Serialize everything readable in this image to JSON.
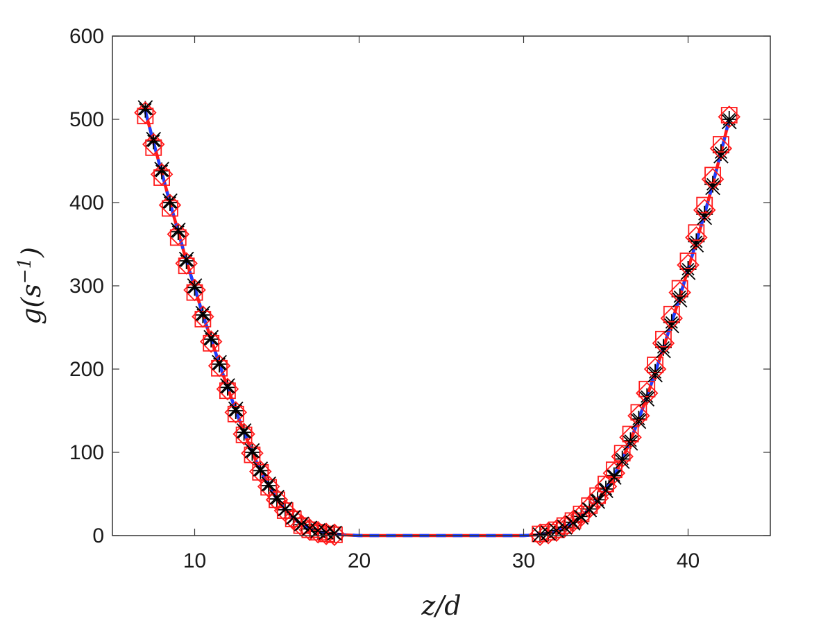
{
  "chart_data": {
    "type": "line",
    "xlabel": "z/d",
    "ylabel_parts": {
      "base": "g(s",
      "sup": "−1",
      "close": ")"
    },
    "xlim": [
      5,
      45
    ],
    "ylim": [
      0,
      600
    ],
    "xticks": [
      10,
      20,
      30,
      40
    ],
    "yticks": [
      0,
      100,
      200,
      300,
      400,
      500,
      600
    ],
    "grid": false,
    "legend": "none",
    "curves": {
      "blue_dashed_color": "#1f3fff",
      "red_line_color": "#ff1a1a",
      "points": [
        [
          7.0,
          510
        ],
        [
          7.5,
          472
        ],
        [
          8.0,
          436
        ],
        [
          8.5,
          400
        ],
        [
          9.0,
          365
        ],
        [
          9.5,
          330
        ],
        [
          10.0,
          298
        ],
        [
          10.5,
          265
        ],
        [
          11.0,
          236
        ],
        [
          11.5,
          206
        ],
        [
          12.0,
          178
        ],
        [
          12.5,
          150
        ],
        [
          13.0,
          124
        ],
        [
          13.5,
          100
        ],
        [
          14.0,
          78
        ],
        [
          14.5,
          60
        ],
        [
          15.0,
          44
        ],
        [
          15.5,
          31
        ],
        [
          16.0,
          21
        ],
        [
          16.5,
          13
        ],
        [
          17.0,
          8
        ],
        [
          17.5,
          5
        ],
        [
          18.0,
          3
        ],
        [
          18.5,
          2
        ],
        [
          19.0,
          1
        ],
        [
          20.0,
          0
        ],
        [
          25.0,
          0
        ],
        [
          30.0,
          0
        ],
        [
          31.0,
          1
        ],
        [
          31.5,
          3
        ],
        [
          32.0,
          6
        ],
        [
          32.5,
          10
        ],
        [
          33.0,
          16
        ],
        [
          33.5,
          23
        ],
        [
          34.0,
          32
        ],
        [
          34.5,
          43
        ],
        [
          35.0,
          56
        ],
        [
          35.5,
          72
        ],
        [
          36.0,
          92
        ],
        [
          36.5,
          114
        ],
        [
          37.0,
          140
        ],
        [
          37.5,
          167
        ],
        [
          38.0,
          196
        ],
        [
          38.5,
          226
        ],
        [
          39.0,
          256
        ],
        [
          39.5,
          287
        ],
        [
          40.0,
          320
        ],
        [
          40.5,
          353
        ],
        [
          41.0,
          386
        ],
        [
          41.5,
          422
        ],
        [
          42.0,
          460
        ],
        [
          42.5,
          500
        ]
      ]
    },
    "marker_series": [
      {
        "marker": "star",
        "color": "#000000",
        "x": [
          7.0,
          7.5,
          8.0,
          8.5,
          9.0,
          9.5,
          10.0,
          10.5,
          11.0,
          11.5,
          12.0,
          12.5,
          13.0,
          13.5,
          14.0,
          14.5,
          15.0,
          15.5,
          16.0,
          16.5,
          17.0,
          17.5,
          18.0,
          18.5,
          31.0,
          31.5,
          32.0,
          32.5,
          33.0,
          33.5,
          34.0,
          34.5,
          35.0,
          35.5,
          36.0,
          36.5,
          37.0,
          37.5,
          38.0,
          38.5,
          39.0,
          39.5,
          40.0,
          40.5,
          41.0,
          41.5,
          42.0,
          42.5
        ],
        "y": [
          512,
          474,
          438,
          400,
          365,
          330,
          298,
          265,
          236,
          206,
          178,
          150,
          124,
          100,
          78,
          60,
          44,
          31,
          21,
          13,
          8,
          5,
          3,
          2,
          1,
          3,
          6,
          10,
          16,
          23,
          32,
          43,
          56,
          72,
          92,
          114,
          140,
          167,
          196,
          226,
          256,
          287,
          320,
          353,
          386,
          422,
          460,
          500
        ]
      },
      {
        "marker": "square",
        "color": "#ff1a1a",
        "x": [
          7.0,
          7.5,
          8.0,
          8.5,
          9.0,
          9.5,
          10.0,
          10.5,
          11.0,
          11.5,
          12.0,
          12.5,
          13.0,
          13.5,
          14.0,
          14.5,
          15.0,
          15.5,
          16.0,
          16.5,
          17.0,
          17.5,
          18.0,
          18.5,
          31.0,
          31.5,
          32.0,
          32.5,
          33.0,
          33.5,
          34.0,
          34.5,
          35.0,
          35.5,
          36.0,
          36.5,
          37.0,
          37.5,
          38.0,
          38.5,
          39.0,
          39.5,
          40.0,
          40.5,
          41.0,
          41.5,
          42.0,
          42.5
        ],
        "y": [
          504,
          466,
          430,
          393,
          358,
          324,
          292,
          260,
          231,
          201,
          174,
          146,
          121,
          97,
          76,
          58,
          43,
          30,
          20,
          12,
          7,
          4,
          2,
          1,
          2,
          4,
          7,
          12,
          18,
          26,
          36,
          48,
          62,
          79,
          99,
          122,
          148,
          176,
          205,
          236,
          266,
          297,
          330,
          364,
          397,
          433,
          470,
          505
        ]
      },
      {
        "marker": "diamond",
        "color": "#ff1a1a",
        "x": [
          7.0,
          7.5,
          8.0,
          8.5,
          9.0,
          9.5,
          10.0,
          10.5,
          11.0,
          11.5,
          12.0,
          12.5,
          13.0,
          13.5,
          14.0,
          14.5,
          15.0,
          15.5,
          16.0,
          16.5,
          17.0,
          17.5,
          18.0,
          18.5,
          31.0,
          31.5,
          32.0,
          32.5,
          33.0,
          33.5,
          34.0,
          34.5,
          35.0,
          35.5,
          36.0,
          36.5,
          37.0,
          37.5,
          38.0,
          38.5,
          39.0,
          39.5,
          40.0,
          40.5,
          41.0,
          41.5,
          42.0,
          42.5
        ],
        "y": [
          508,
          470,
          434,
          397,
          362,
          327,
          295,
          263,
          233,
          204,
          176,
          148,
          122,
          99,
          77,
          59,
          43,
          30,
          20,
          12,
          7,
          4,
          2,
          1,
          1,
          3,
          6,
          11,
          17,
          24,
          34,
          45,
          59,
          75,
          95,
          118,
          144,
          171,
          200,
          231,
          261,
          292,
          325,
          358,
          391,
          428,
          465,
          503
        ]
      },
      {
        "marker": "x",
        "color": "#000000",
        "x": [
          7.0,
          7.5,
          8.0,
          8.5,
          9.0,
          9.5,
          10.0,
          10.5,
          11.0,
          11.5,
          12.0,
          12.5,
          13.0,
          13.5,
          14.0,
          14.5,
          15.0,
          15.5,
          16.0,
          16.5,
          17.0,
          17.5,
          18.0,
          18.5,
          31.0,
          31.5,
          32.0,
          32.5,
          33.0,
          33.5,
          34.0,
          34.5,
          35.0,
          35.5,
          36.0,
          36.5,
          37.0,
          37.5,
          38.0,
          38.5,
          39.0,
          39.5,
          40.0,
          40.5,
          41.0,
          41.5,
          42.0,
          42.5
        ],
        "y": [
          514,
          476,
          440,
          402,
          367,
          332,
          300,
          267,
          238,
          208,
          180,
          152,
          126,
          102,
          80,
          62,
          46,
          32,
          22,
          14,
          9,
          6,
          4,
          3,
          1,
          3,
          6,
          10,
          15,
          22,
          31,
          41,
          54,
          70,
          89,
          111,
          137,
          164,
          193,
          222,
          252,
          283,
          316,
          349,
          382,
          418,
          456,
          497
        ]
      }
    ]
  }
}
